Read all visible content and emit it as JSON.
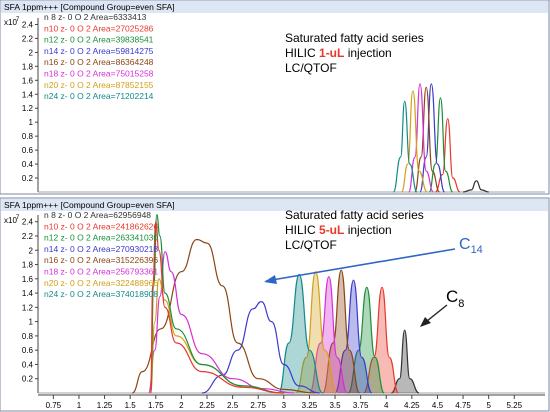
{
  "chart_data": [
    {
      "type": "line",
      "header": "SFA 1ppm+++ [Compound Group=even SFA]",
      "scale_label": "x10",
      "scale_exp": "7",
      "yticks": [
        0.2,
        0.4,
        0.6,
        0.8,
        1,
        1.2,
        1.4,
        1.6,
        1.8,
        2,
        2.2,
        2.4
      ],
      "ylim": [
        0,
        2.55
      ],
      "xlim": [
        0.6,
        5.55
      ],
      "annotation_lines": [
        "Saturated fatty acid series",
        "HILIC ",
        "1-uL",
        " injection",
        "LC/QTOF"
      ],
      "legend": [
        {
          "label": "n 8 z- 0 O 2 Area=6333413",
          "color": "#333333"
        },
        {
          "label": "n10 z- 0 O 2 Area=27025286",
          "color": "#e8382c"
        },
        {
          "label": "n12 z- 0 O 2 Area=39838541",
          "color": "#1a8f3a"
        },
        {
          "label": "n14 z- 0 O 2 Area=59814275",
          "color": "#3a3acc"
        },
        {
          "label": "n16 z- 0 O 2 Area=86364248",
          "color": "#8b4513"
        },
        {
          "label": "n18 z- 0 O 2 Area=75015258",
          "color": "#d62fd6"
        },
        {
          "label": "n20 z- 0 O 2 Area=87852155",
          "color": "#d4a017"
        },
        {
          "label": "n24 z- 0 O 2 Area=71202214",
          "color": "#138a8a"
        }
      ],
      "series": [
        {
          "color": "#333333",
          "values": [
            [
              4.75,
              0
            ],
            [
              4.83,
              0.03
            ],
            [
              4.88,
              0.16
            ],
            [
              4.93,
              0.03
            ],
            [
              5.0,
              0
            ]
          ]
        },
        {
          "color": "#e8382c",
          "values": [
            [
              4.48,
              0
            ],
            [
              4.55,
              0.25
            ],
            [
              4.6,
              1.05
            ],
            [
              4.65,
              0.2
            ],
            [
              4.72,
              0
            ]
          ]
        },
        {
          "color": "#1a8f3a",
          "values": [
            [
              4.42,
              0
            ],
            [
              4.48,
              0.4
            ],
            [
              4.53,
              1.35
            ],
            [
              4.58,
              0.3
            ],
            [
              4.65,
              0
            ]
          ]
        },
        {
          "color": "#3a3acc",
          "values": [
            [
              4.33,
              0
            ],
            [
              4.39,
              0.5
            ],
            [
              4.44,
              1.55
            ],
            [
              4.5,
              0.4
            ],
            [
              4.57,
              0
            ]
          ]
        },
        {
          "color": "#8b4513",
          "values": [
            [
              4.28,
              0
            ],
            [
              4.34,
              0.5
            ],
            [
              4.39,
              1.5
            ],
            [
              4.45,
              0.3
            ],
            [
              4.52,
              0
            ]
          ]
        },
        {
          "color": "#d62fd6",
          "values": [
            [
              4.22,
              0
            ],
            [
              4.28,
              0.5
            ],
            [
              4.33,
              1.55
            ],
            [
              4.39,
              0.3
            ],
            [
              4.46,
              0
            ]
          ]
        },
        {
          "color": "#d4a017",
          "values": [
            [
              4.15,
              0
            ],
            [
              4.21,
              0.4
            ],
            [
              4.26,
              1.45
            ],
            [
              4.32,
              0.3
            ],
            [
              4.4,
              0
            ]
          ]
        },
        {
          "color": "#138a8a",
          "values": [
            [
              4.07,
              0
            ],
            [
              4.14,
              0.5
            ],
            [
              4.18,
              1.3
            ],
            [
              4.23,
              0.4
            ],
            [
              4.3,
              0
            ]
          ]
        }
      ]
    },
    {
      "type": "line",
      "header": "SFA 1ppm+++ [Compound Group=even SFA]",
      "scale_label": "x10",
      "scale_exp": "7",
      "yticks": [
        0.2,
        0.4,
        0.6,
        0.8,
        1,
        1.2,
        1.4,
        1.6,
        1.8,
        2,
        2.2,
        2.4
      ],
      "ylim": [
        0,
        2.55
      ],
      "xlim": [
        0.6,
        5.55
      ],
      "xticks": [
        "0.75",
        "1",
        "1.25",
        "1.5",
        "1.75",
        "2",
        "2.25",
        "2.5",
        "2.75",
        "3",
        "3.25",
        "3.5",
        "3.75",
        "4",
        "4.25",
        "4.5",
        "4.75",
        "5",
        "5.25"
      ],
      "annotation_lines": [
        "Saturated fatty acid series",
        "HILIC ",
        "5-uL",
        " injection",
        "LC/QTOF"
      ],
      "label_c14": "C",
      "label_c14_sub": "14",
      "label_c8": "C",
      "label_c8_sub": "8",
      "legend": [
        {
          "label": "n 8 z- 0 O 2 Area=62956948",
          "color": "#333333"
        },
        {
          "label": "n10 z- 0 O 2 Area=241862626",
          "color": "#e8382c"
        },
        {
          "label": "n12 z- 0 O 2 Area=263341030",
          "color": "#1a8f3a"
        },
        {
          "label": "n14 z- 0 O 2 Area=270930218",
          "color": "#3a3acc"
        },
        {
          "label": "n16 z- 0 O 2 Area=315226396",
          "color": "#8b4513"
        },
        {
          "label": "n18 z- 0 O 2 Area=256793361",
          "color": "#d62fd6"
        },
        {
          "label": "n20 z- 0 O 2 Area=322488966",
          "color": "#d4a017"
        },
        {
          "label": "n24 z- 0 O 2 Area=374018908",
          "color": "#138a8a"
        }
      ],
      "series": [
        {
          "color": "#333333",
          "fill": true,
          "values": [
            [
              4.05,
              0
            ],
            [
              4.13,
              0.2
            ],
            [
              4.18,
              0.88
            ],
            [
              4.23,
              0.2
            ],
            [
              4.32,
              0
            ]
          ]
        },
        {
          "color": "#e8382c",
          "fill": true,
          "values": [
            [
              3.78,
              0
            ],
            [
              3.88,
              0.5
            ],
            [
              3.96,
              1.48
            ],
            [
              4.03,
              0.5
            ],
            [
              4.12,
              0
            ]
          ]
        },
        {
          "color": "#1a8f3a",
          "fill": true,
          "values": [
            [
              3.63,
              0
            ],
            [
              3.73,
              0.6
            ],
            [
              3.81,
              1.48
            ],
            [
              3.89,
              0.5
            ],
            [
              3.98,
              0
            ]
          ]
        },
        {
          "color": "#3a3acc",
          "fill": true,
          "values": [
            [
              3.5,
              0
            ],
            [
              3.6,
              0.6
            ],
            [
              3.68,
              1.58
            ],
            [
              3.76,
              0.5
            ],
            [
              3.86,
              0
            ]
          ]
        },
        {
          "color": "#8b4513",
          "fill": true,
          "values": [
            [
              3.38,
              0
            ],
            [
              3.48,
              0.7
            ],
            [
              3.56,
              1.72
            ],
            [
              3.64,
              0.6
            ],
            [
              3.74,
              0
            ]
          ]
        },
        {
          "color": "#d62fd6",
          "fill": true,
          "values": [
            [
              3.25,
              0
            ],
            [
              3.36,
              0.7
            ],
            [
              3.44,
              1.63
            ],
            [
              3.52,
              0.5
            ],
            [
              3.62,
              0
            ]
          ]
        },
        {
          "color": "#d4a017",
          "fill": true,
          "values": [
            [
              3.12,
              0
            ],
            [
              3.22,
              0.5
            ],
            [
              3.31,
              1.7
            ],
            [
              3.4,
              0.6
            ],
            [
              3.52,
              0
            ]
          ]
        },
        {
          "color": "#138a8a",
          "fill": true,
          "values": [
            [
              2.95,
              0
            ],
            [
              3.05,
              0.7
            ],
            [
              3.15,
              1.66
            ],
            [
              3.25,
              0.6
            ],
            [
              3.38,
              0
            ]
          ]
        },
        {
          "color": "#3a3acc",
          "values": [
            [
              2.2,
              0
            ],
            [
              2.4,
              0.25
            ],
            [
              2.55,
              0.6
            ],
            [
              2.7,
              1.18
            ],
            [
              2.78,
              1.28
            ],
            [
              2.88,
              1.0
            ],
            [
              3.0,
              0.4
            ],
            [
              3.15,
              0.1
            ],
            [
              3.35,
              0
            ]
          ]
        },
        {
          "color": "#8b4513",
          "values": [
            [
              1.52,
              0
            ],
            [
              1.62,
              0.3
            ],
            [
              1.8,
              0.9
            ],
            [
              2.0,
              1.7
            ],
            [
              2.15,
              2.15
            ],
            [
              2.25,
              2.1
            ],
            [
              2.4,
              1.5
            ],
            [
              2.55,
              0.7
            ],
            [
              2.75,
              0.2
            ],
            [
              3.0,
              0.05
            ],
            [
              3.3,
              0
            ]
          ]
        },
        {
          "color": "#d62fd6",
          "values": [
            [
              1.68,
              0
            ],
            [
              1.74,
              0.6
            ],
            [
              1.79,
              1.35
            ],
            [
              1.84,
              1.98
            ],
            [
              1.9,
              1.7
            ],
            [
              2.0,
              1.1
            ],
            [
              2.2,
              0.55
            ],
            [
              2.5,
              0.2
            ],
            [
              2.8,
              0.06
            ],
            [
              3.1,
              0
            ]
          ]
        },
        {
          "color": "#d4a017",
          "values": [
            [
              1.7,
              0
            ],
            [
              1.74,
              1.0
            ],
            [
              1.78,
              1.6
            ],
            [
              1.84,
              1.3
            ],
            [
              1.95,
              0.8
            ],
            [
              2.2,
              0.4
            ],
            [
              2.6,
              0.1
            ],
            [
              3.0,
              0
            ]
          ]
        },
        {
          "color": "#1a8f3a",
          "values": [
            [
              1.7,
              0
            ],
            [
              1.73,
              1.5
            ],
            [
              1.76,
              2.5
            ],
            [
              1.79,
              2.2
            ],
            [
              1.84,
              1.4
            ],
            [
              1.95,
              0.9
            ],
            [
              2.2,
              0.4
            ],
            [
              2.6,
              0.1
            ],
            [
              3.0,
              0
            ]
          ]
        },
        {
          "color": "#e8382c",
          "values": [
            [
              1.7,
              0
            ],
            [
              1.72,
              1.5
            ],
            [
              1.75,
              2.4
            ],
            [
              1.78,
              2.0
            ],
            [
              1.84,
              1.2
            ],
            [
              1.95,
              0.7
            ],
            [
              2.2,
              0.3
            ],
            [
              2.6,
              0.08
            ],
            [
              3.0,
              0
            ]
          ]
        }
      ]
    }
  ]
}
